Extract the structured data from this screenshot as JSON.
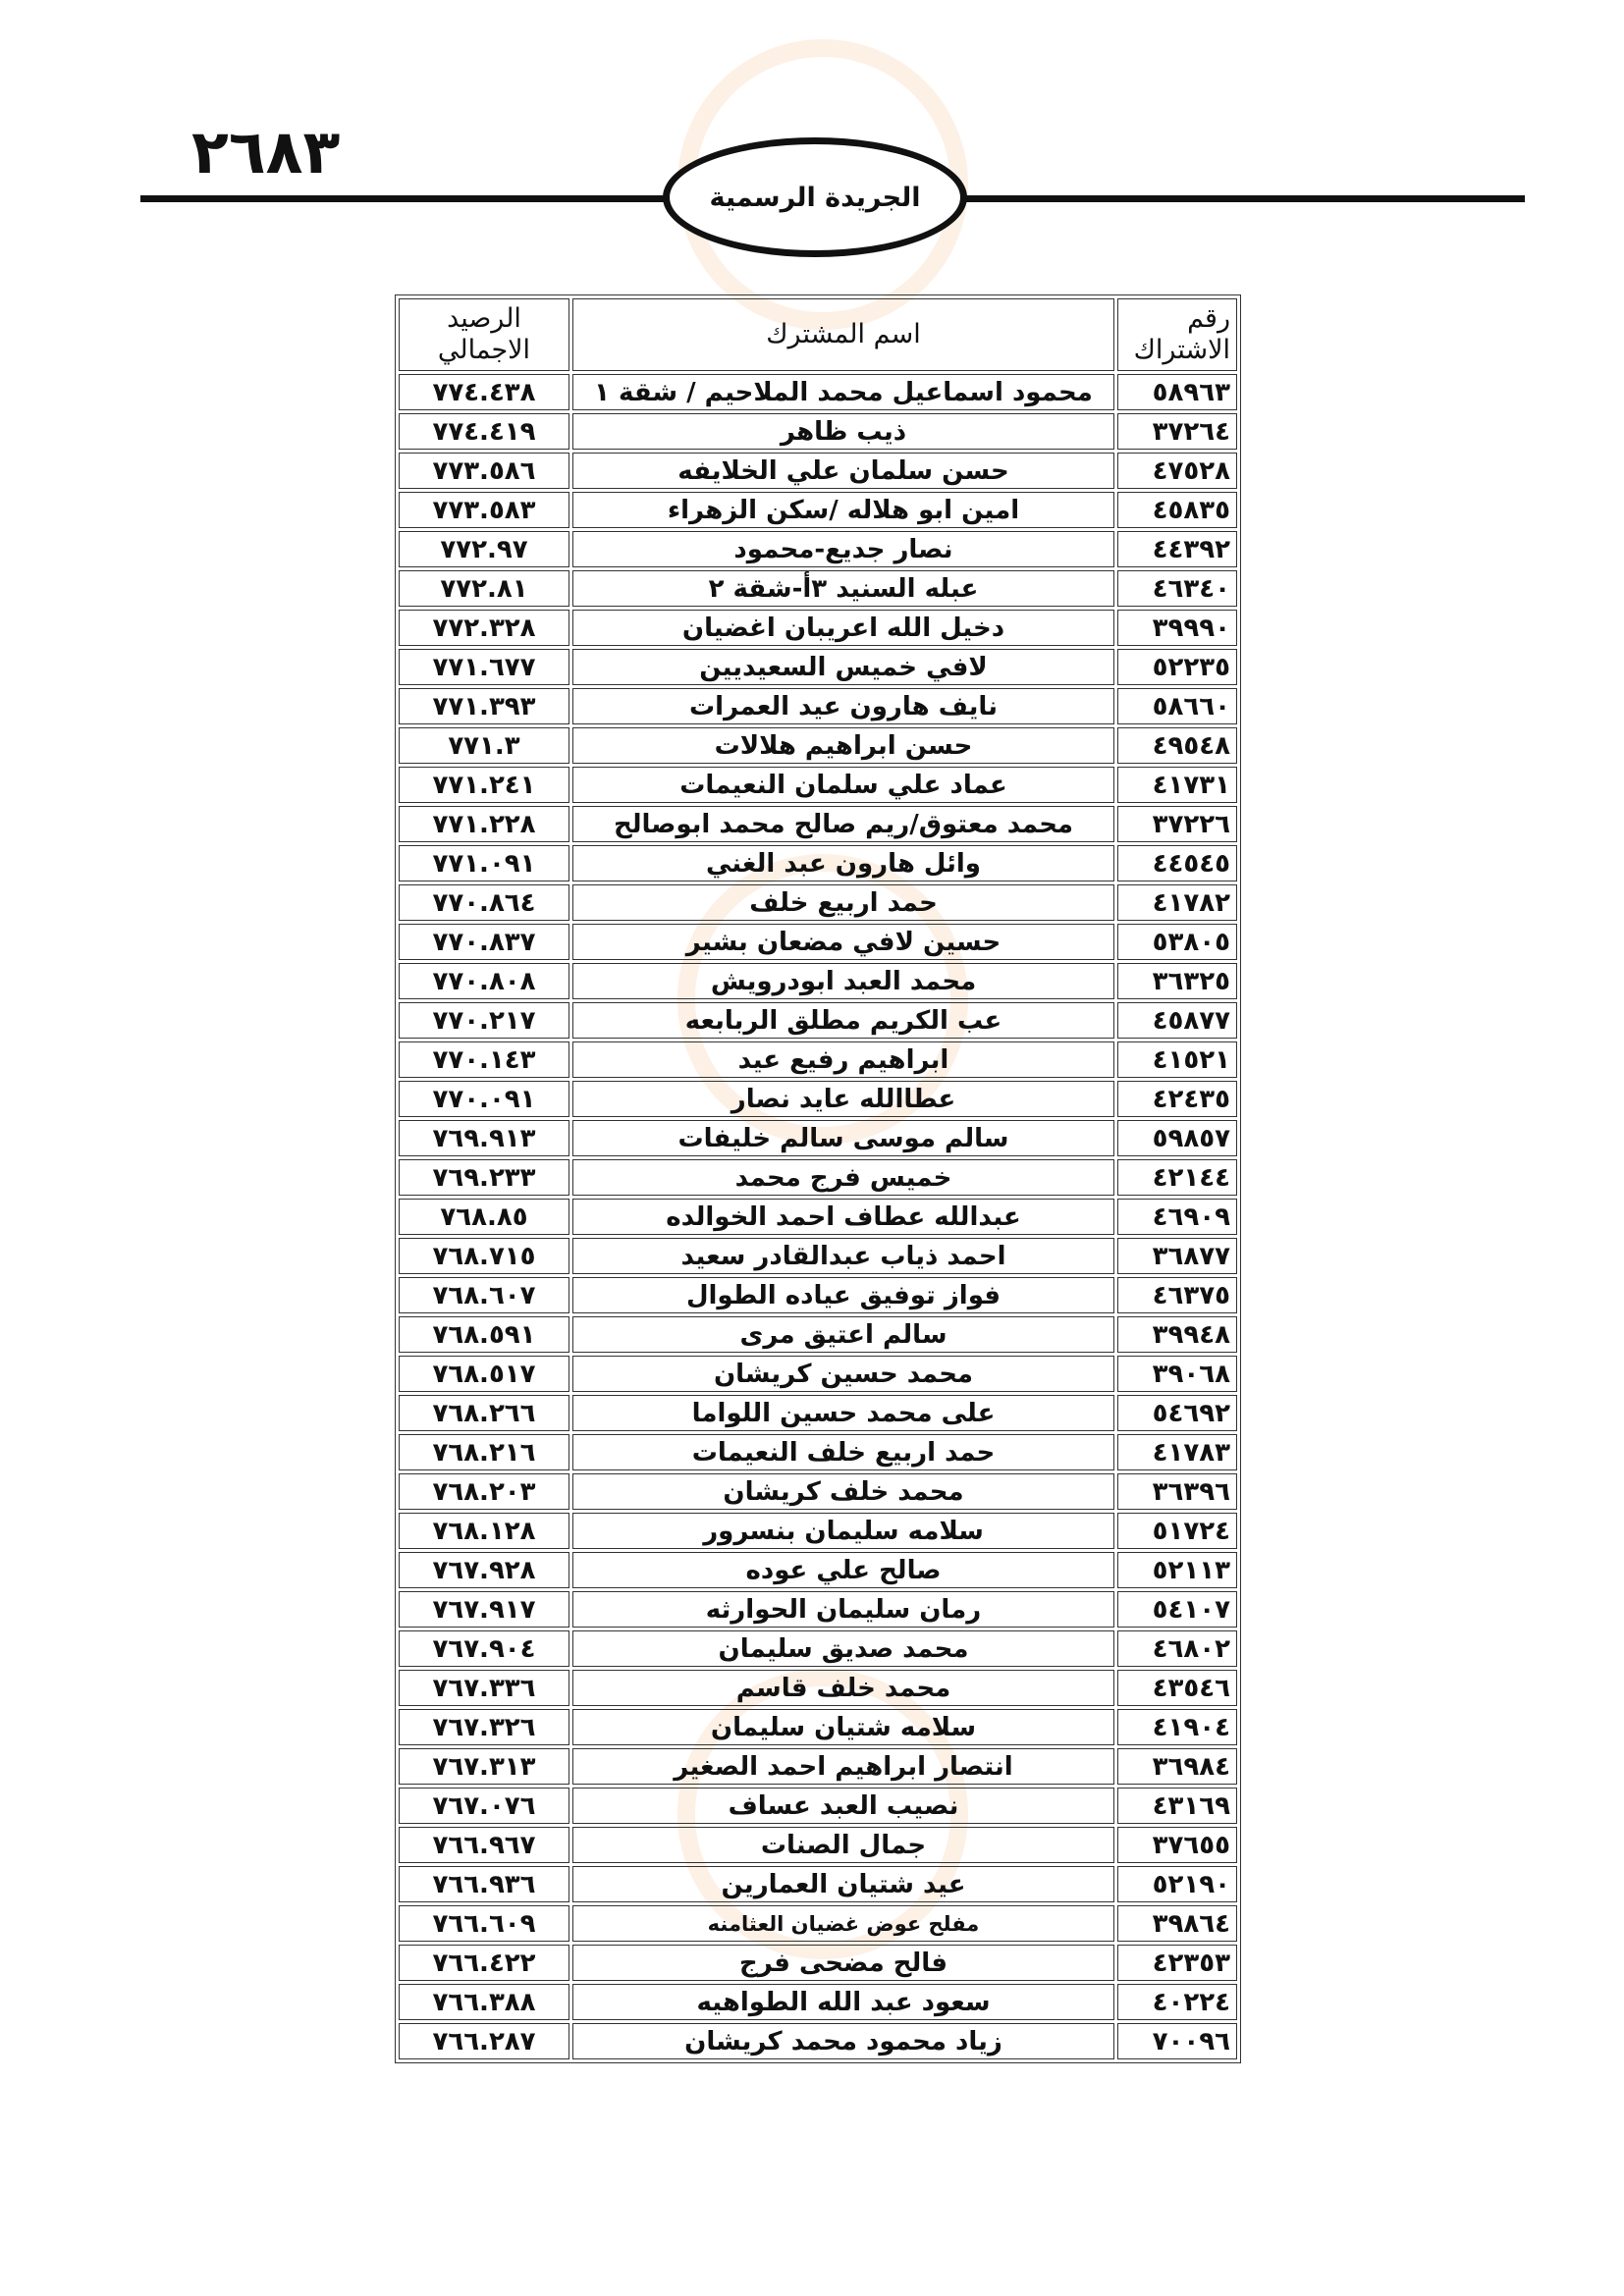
{
  "header": {
    "page_number": "٢٦٨٣",
    "publication": "الجريدة الرسمية"
  },
  "table": {
    "columns": [
      "رقم الاشتراك",
      "اسم المشترك",
      "الرصيد الاجمالي"
    ],
    "rows": [
      [
        "٥٨٩٦٣",
        "محمود اسماعيل محمد الملاحيم / شقة ١",
        "٧٧٤.٤٣٨"
      ],
      [
        "٣٧٢٦٤",
        "ذيب  ظاهر",
        "٧٧٤.٤١٩"
      ],
      [
        "٤٧٥٢٨",
        "حسن سلمان علي الخلايفه",
        "٧٧٣.٥٨٦"
      ],
      [
        "٤٥٨٣٥",
        "امين ابو هلاله /سكن الزهراء",
        "٧٧٣.٥٨٣"
      ],
      [
        "٤٤٣٩٢",
        "نصار جديع-محمود",
        "٧٧٢.٩٧"
      ],
      [
        "٤٦٣٤٠",
        "عبله السنيد  ٣أ-شقة ٢",
        "٧٧٢.٨١"
      ],
      [
        "٣٩٩٩٠",
        "دخيل  الله  اعريبان  اغضيان",
        "٧٧٢.٣٢٨"
      ],
      [
        "٥٢٢٣٥",
        "لافي خميس السعيديين",
        "٧٧١.٦٧٧"
      ],
      [
        "٥٨٦٦٠",
        "نايف هارون عيد العمرات",
        "٧٧١.٣٩٣"
      ],
      [
        "٤٩٥٤٨",
        "حسن ابراهيم هلالات",
        "٧٧١.٣"
      ],
      [
        "٤١٧٣١",
        "عماد علي سلمان النعيمات",
        "٧٧١.٢٤١"
      ],
      [
        "٣٧٢٢٦",
        "محمد معتوق/ريم صالح محمد ابوصالح",
        "٧٧١.٢٢٨"
      ],
      [
        "٤٤٥٤٥",
        "وائل هارون عبد الغني",
        "٧٧١.٠٩١"
      ],
      [
        "٤١٧٨٢",
        "حمد اربيع خلف",
        "٧٧٠.٨٦٤"
      ],
      [
        "٥٣٨٠٥",
        "حسين لافي مضعان بشير",
        "٧٧٠.٨٣٧"
      ],
      [
        "٣٦٣٢٥",
        "محمد العبد ابودرويش",
        "٧٧٠.٨٠٨"
      ],
      [
        "٤٥٨٧٧",
        "عب الكريم مطلق الربابعه",
        "٧٧٠.٢١٧"
      ],
      [
        "٤١٥٢١",
        "ابراهيم رفيع عيد",
        "٧٧٠.١٤٣"
      ],
      [
        "٤٢٤٣٥",
        "عطاالله عايد نصار",
        "٧٧٠.٠٩١"
      ],
      [
        "٥٩٨٥٧",
        "سالم موسى سالم خليفات",
        "٧٦٩.٩١٣"
      ],
      [
        "٤٢١٤٤",
        "خميس فرج محمد",
        "٧٦٩.٢٣٣"
      ],
      [
        "٤٦٩٠٩",
        "عبدالله عطاف احمد الخوالده",
        "٧٦٨.٨٥"
      ],
      [
        "٣٦٨٧٧",
        "احمد ذياب عبدالقادر سعيد",
        "٧٦٨.٧١٥"
      ],
      [
        "٤٦٣٧٥",
        "فواز توفيق عياده الطوال",
        "٧٦٨.٦٠٧"
      ],
      [
        "٣٩٩٤٨",
        "سالم اعتيق مرى",
        "٧٦٨.٥٩١"
      ],
      [
        "٣٩٠٦٨",
        "محمد حسين كريشان",
        "٧٦٨.٥١٧"
      ],
      [
        "٥٤٦٩٢",
        "على محمد حسين اللواما",
        "٧٦٨.٢٦٦"
      ],
      [
        "٤١٧٨٣",
        "حمد اربيع خلف  النعيمات",
        "٧٦٨.٢١٦"
      ],
      [
        "٣٦٣٩٦",
        "محمد خلف كريشان",
        "٧٦٨.٢٠٣"
      ],
      [
        "٥١٧٢٤",
        "سلامه سليمان بنسرور",
        "٧٦٨.١٢٨"
      ],
      [
        "٥٢١١٣",
        "صالح علي عوده",
        "٧٦٧.٩٢٨"
      ],
      [
        "٥٤١٠٧",
        "رمان سليمان الحوارثه",
        "٧٦٧.٩١٧"
      ],
      [
        "٤٦٨٠٢",
        "محمد صديق سليمان",
        "٧٦٧.٩٠٤"
      ],
      [
        "٤٣٥٤٦",
        "محمد خلف قاسم",
        "٧٦٧.٣٣٦"
      ],
      [
        "٤١٩٠٤",
        "سلامه شتيان سليمان",
        "٧٦٧.٣٢٦"
      ],
      [
        "٣٦٩٨٤",
        "انتصار ابراهيم احمد الصغير",
        "٧٦٧.٣١٣"
      ],
      [
        "٤٣١٦٩",
        "نصيب العبد عساف",
        "٧٦٧.٠٧٦"
      ],
      [
        "٣٧٦٥٥",
        "جمال الصنات",
        "٧٦٦.٩٦٧"
      ],
      [
        "٥٢١٩٠",
        "عيد شتيان العمارين",
        "٧٦٦.٩٣٦"
      ],
      [
        "٣٩٨٦٤",
        "مفلح عوض غضيان العثامنه",
        "٧٦٦.٦٠٩"
      ],
      [
        "٤٢٣٥٣",
        "فالح مضحى فرج",
        "٧٦٦.٤٢٢"
      ],
      [
        "٤٠٢٢٤",
        "سعود عبد الله الطواهيه",
        "٧٦٦.٣٨٨"
      ],
      [
        "٧٠٠٩٦",
        "زياد محمود محمد كريشان",
        "٧٦٦.٢٨٧"
      ]
    ]
  }
}
